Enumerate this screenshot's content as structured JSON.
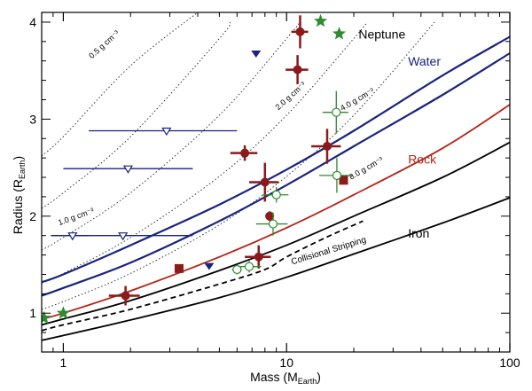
{
  "chart_data": {
    "type": "scatter",
    "xlabel": "Mass (M",
    "xlabel_sub": "Earth",
    "xlabel_end": ")",
    "ylabel": "Radius (R",
    "ylabel_sub": "Earth",
    "ylabel_end": ")",
    "xscale": "log",
    "xlim": [
      0.8,
      100
    ],
    "ylim": [
      0.6,
      4.1
    ],
    "x_ticks": [
      {
        "value": 1,
        "label": "1"
      },
      {
        "value": 10,
        "label": "10"
      },
      {
        "value": 100,
        "label": "100"
      }
    ],
    "y_ticks": [
      {
        "value": 1,
        "label": "1"
      },
      {
        "value": 2,
        "label": "2"
      },
      {
        "value": 3,
        "label": "3"
      },
      {
        "value": 4,
        "label": "4"
      }
    ],
    "colors": {
      "water": "#1a237e",
      "rock": "#b22418",
      "iron": "#000000",
      "planet_red": "#8b1a1a",
      "planet_blue": "#1a237e",
      "planet_green": "#2e8b2e"
    },
    "composition_curves": [
      {
        "name": "Water",
        "color": "#1a237e",
        "width": 2.2,
        "dash": "",
        "points": [
          [
            0.8,
            1.32
          ],
          [
            1,
            1.4
          ],
          [
            2,
            1.7
          ],
          [
            5,
            2.12
          ],
          [
            10,
            2.48
          ],
          [
            20,
            2.88
          ],
          [
            50,
            3.45
          ],
          [
            100,
            3.85
          ]
        ]
      },
      {
        "name": "Water",
        "color": "#1a237e",
        "width": 2.2,
        "dash": "",
        "points": [
          [
            0.8,
            1.18
          ],
          [
            1,
            1.26
          ],
          [
            2,
            1.52
          ],
          [
            5,
            1.95
          ],
          [
            10,
            2.32
          ],
          [
            20,
            2.72
          ],
          [
            50,
            3.25
          ],
          [
            100,
            3.68
          ]
        ]
      },
      {
        "name": "Rock",
        "color": "#b22418",
        "width": 1.8,
        "dash": "",
        "points": [
          [
            0.8,
            0.94
          ],
          [
            1,
            1.0
          ],
          [
            2,
            1.23
          ],
          [
            5,
            1.58
          ],
          [
            10,
            1.88
          ],
          [
            20,
            2.22
          ],
          [
            50,
            2.7
          ],
          [
            100,
            3.15
          ]
        ]
      },
      {
        "name": "",
        "color": "#000000",
        "width": 1.8,
        "dash": "",
        "points": [
          [
            0.8,
            0.88
          ],
          [
            1,
            0.94
          ],
          [
            2,
            1.13
          ],
          [
            5,
            1.44
          ],
          [
            10,
            1.7
          ],
          [
            20,
            2.0
          ],
          [
            50,
            2.4
          ],
          [
            100,
            2.76
          ]
        ]
      },
      {
        "name": "Iron",
        "color": "#000000",
        "width": 1.8,
        "dash": "",
        "points": [
          [
            0.8,
            0.72
          ],
          [
            1,
            0.77
          ],
          [
            2,
            0.93
          ],
          [
            5,
            1.16
          ],
          [
            10,
            1.37
          ],
          [
            20,
            1.61
          ],
          [
            50,
            1.93
          ],
          [
            100,
            2.19
          ]
        ]
      },
      {
        "name": "Collisional Stripping",
        "color": "#000000",
        "width": 1.8,
        "dash": "6,4",
        "points": [
          [
            0.8,
            0.82
          ],
          [
            1,
            0.88
          ],
          [
            2,
            1.04
          ],
          [
            5,
            1.3
          ],
          [
            8,
            1.45
          ],
          [
            10,
            1.58
          ],
          [
            15,
            1.78
          ],
          [
            22,
            1.95
          ]
        ]
      }
    ],
    "density_curves": [
      {
        "label": "0.5 g cm⁻³",
        "points": [
          [
            0.8,
            2.62
          ],
          [
            1,
            2.82
          ],
          [
            2,
            3.55
          ],
          [
            4,
            4.1
          ]
        ]
      },
      {
        "label": "1.0 g cm⁻³",
        "points": [
          [
            0.8,
            2.08
          ],
          [
            1,
            2.24
          ],
          [
            2,
            2.82
          ],
          [
            5,
            3.83
          ],
          [
            5.6,
            4.0
          ]
        ]
      },
      {
        "label": "2.0 g cm⁻³",
        "points": [
          [
            0.8,
            1.65
          ],
          [
            1,
            1.78
          ],
          [
            2,
            2.24
          ],
          [
            5,
            3.04
          ],
          [
            10,
            3.83
          ],
          [
            11.5,
            4.0
          ]
        ]
      },
      {
        "label": "4.0 g cm⁻³",
        "points": [
          [
            0.8,
            1.31
          ],
          [
            1,
            1.41
          ],
          [
            2,
            1.78
          ],
          [
            5,
            2.41
          ],
          [
            10,
            3.04
          ],
          [
            20,
            3.83
          ],
          [
            23,
            4.0
          ]
        ]
      },
      {
        "label": "8.0 g cm⁻³",
        "points": [
          [
            0.8,
            1.04
          ],
          [
            1,
            1.12
          ],
          [
            2,
            1.41
          ],
          [
            5,
            1.91
          ],
          [
            10,
            2.41
          ],
          [
            20,
            3.04
          ],
          [
            46,
            4.0
          ]
        ]
      }
    ],
    "curve_labels": [
      {
        "text": "Neptune",
        "x": 21,
        "y": 3.83,
        "color": "#000000"
      },
      {
        "text": "Water",
        "x": 35,
        "y": 3.55,
        "color": "#1a237e"
      },
      {
        "text": "Rock",
        "x": 35,
        "y": 2.54,
        "color": "#b22418"
      },
      {
        "text": "Iron",
        "x": 35,
        "y": 1.78,
        "color": "#000000"
      }
    ],
    "density_label_positions": [
      {
        "x": 1.55,
        "y": 3.75,
        "angle": -42
      },
      {
        "x": 1.15,
        "y": 1.97,
        "angle": -20
      },
      {
        "x": 10.6,
        "y": 3.22,
        "angle": -42
      },
      {
        "x": 21,
        "y": 3.18,
        "angle": -30
      },
      {
        "x": 23,
        "y": 2.47,
        "angle": -30
      }
    ],
    "stripping_label": {
      "text": "Collisional Stripping",
      "x": 10.6,
      "y": 1.5,
      "angle": -17
    },
    "planets_red_circle": [
      {
        "x": 11.5,
        "y": 3.9,
        "xerr": 1.0,
        "yerr": 0.17
      },
      {
        "x": 11.2,
        "y": 3.51,
        "xerr": 1.3,
        "yerr": 0.15
      },
      {
        "x": 6.5,
        "y": 2.65,
        "xerr": 0.9,
        "yerr": 0.08
      },
      {
        "x": 15.2,
        "y": 2.72,
        "xerr": 2.3,
        "yerr": 0.18
      },
      {
        "x": 8.0,
        "y": 2.35,
        "xerr": 1.2,
        "yerr": 0.2
      },
      {
        "x": 8.4,
        "y": 2.0,
        "xerr": 0.2,
        "yerr": 0.05
      },
      {
        "x": 7.5,
        "y": 1.58,
        "xerr": 1.0,
        "yerr": 0.12
      },
      {
        "x": 1.9,
        "y": 1.18,
        "xerr": 0.3,
        "yerr": 0.1
      }
    ],
    "planets_red_square": [
      {
        "x": 3.3,
        "y": 1.46
      },
      {
        "x": 18.0,
        "y": 2.37
      }
    ],
    "planets_green_circle": [
      {
        "x": 16.7,
        "y": 3.07,
        "xerr": 2.2,
        "yerr": 0.22
      },
      {
        "x": 16.8,
        "y": 2.42,
        "xerr": 2.8,
        "yerr": 0.18
      },
      {
        "x": 9.0,
        "y": 2.22,
        "xerr": 1.2,
        "yerr": 0.08
      },
      {
        "x": 8.7,
        "y": 1.92,
        "xerr": 1.4,
        "yerr": 0.12
      },
      {
        "x": 6.8,
        "y": 1.48,
        "xerr": 0.9,
        "yerr": 0.06
      },
      {
        "x": 6.0,
        "y": 1.45,
        "xerr": 0.3,
        "yerr": 0.05
      }
    ],
    "planets_green_star": [
      {
        "x": 14.2,
        "y": 4.01
      },
      {
        "x": 17.2,
        "y": 3.88
      },
      {
        "x": 1.0,
        "y": 1.0
      },
      {
        "x": 0.82,
        "y": 0.95
      }
    ],
    "planets_blue_triangle_open": [
      {
        "x": 2.9,
        "y": 2.88,
        "xmin": 1.3,
        "xmax": 6.0
      },
      {
        "x": 1.95,
        "y": 2.49,
        "xmin": 1.0,
        "xmax": 3.8
      },
      {
        "x": 1.85,
        "y": 1.8,
        "xmin": 0.88,
        "xmax": 3.8
      },
      {
        "x": 1.1,
        "y": 1.8,
        "xmin": 0.88,
        "xmax": 1.3
      }
    ],
    "planets_blue_triangle_filled": [
      {
        "x": 7.3,
        "y": 3.68
      },
      {
        "x": 4.5,
        "y": 1.49
      }
    ]
  }
}
